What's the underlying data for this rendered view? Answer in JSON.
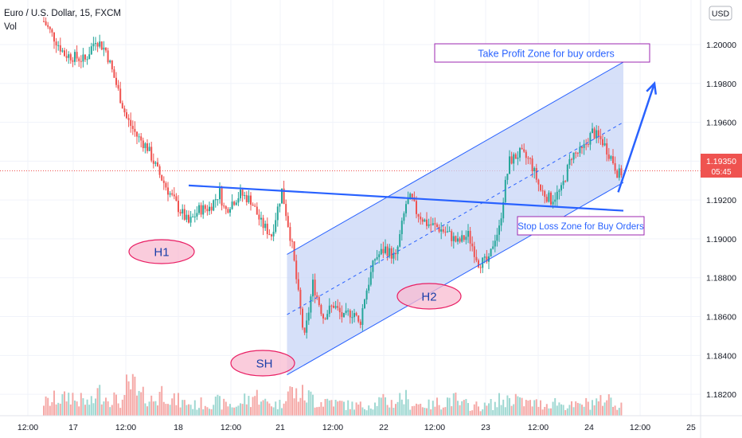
{
  "header": {
    "symbol": "Euro / U.S. Dollar, 15, FXCM",
    "volume_label": "Vol",
    "currency_button": "USD"
  },
  "price_tag": {
    "price": "1.19350",
    "countdown": "05:45"
  },
  "annotations": {
    "take_profit": "Take Profit Zone for buy orders",
    "stop_loss": "Stop Loss Zone for Buy Orders",
    "h1": "H1",
    "sh": "SH",
    "h2": "H2"
  },
  "colors": {
    "up": "#26a69a",
    "down": "#ef5350",
    "trendline": "#2962ff",
    "channel_fill": "#c8d6f7",
    "annotation_border": "#9c27b0",
    "ellipse_fill": "#f8bbd0",
    "ellipse_border": "#e91e63",
    "price_tag_bg": "#ef5350"
  },
  "chart_data": {
    "type": "candlestick",
    "title": "Euro / U.S. Dollar, 15, FXCM",
    "ylim": [
      1.1818,
      1.2009
    ],
    "y_ticks": [
      "1.20000",
      "1.19800",
      "1.19600",
      "1.19400",
      "1.19200",
      "1.19000",
      "1.18800",
      "1.18600",
      "1.18400",
      "1.18200"
    ],
    "x_ticks": [
      "12:00",
      "17",
      "12:00",
      "18",
      "12:00",
      "21",
      "12:00",
      "22",
      "12:00",
      "23",
      "12:00",
      "24",
      "12:00",
      "25"
    ],
    "grid": true,
    "last_price": 1.1935,
    "series": [
      {
        "name": "price",
        "path": [
          [
            0,
            1.2012
          ],
          [
            2,
            1.1995
          ],
          [
            4,
            1.1992
          ],
          [
            5,
            1.2003
          ],
          [
            6,
            1.1997
          ],
          [
            8,
            1.1962
          ],
          [
            9,
            1.1953
          ],
          [
            10,
            1.1947
          ],
          [
            11,
            1.1935
          ],
          [
            12,
            1.1925
          ],
          [
            13,
            1.1916
          ],
          [
            14,
            1.1908
          ],
          [
            15,
            1.1915
          ],
          [
            16,
            1.1916
          ],
          [
            17,
            1.1924
          ],
          [
            17.5,
            1.1914
          ],
          [
            18,
            1.1918
          ],
          [
            19,
            1.1923
          ],
          [
            20,
            1.192
          ],
          [
            21,
            1.1908
          ],
          [
            22,
            1.1902
          ],
          [
            23,
            1.1925
          ],
          [
            24,
            1.1896
          ],
          [
            24.5,
            1.1875
          ],
          [
            25,
            1.1855
          ],
          [
            25.2,
            1.1849
          ],
          [
            26,
            1.1877
          ],
          [
            27,
            1.186
          ],
          [
            28,
            1.1866
          ],
          [
            29,
            1.1859
          ],
          [
            29.5,
            1.1862
          ],
          [
            30,
            1.1862
          ],
          [
            30.5,
            1.1855
          ],
          [
            31,
            1.187
          ],
          [
            32,
            1.189
          ],
          [
            33,
            1.1895
          ],
          [
            34,
            1.189
          ],
          [
            35,
            1.1918
          ],
          [
            35.5,
            1.1921
          ],
          [
            36,
            1.1914
          ],
          [
            37,
            1.1908
          ],
          [
            38,
            1.1906
          ],
          [
            39,
            1.1903
          ],
          [
            40,
            1.1898
          ],
          [
            41,
            1.1902
          ],
          [
            42,
            1.1888
          ],
          [
            43,
            1.1888
          ],
          [
            43.5,
            1.19
          ],
          [
            44,
            1.1905
          ],
          [
            44.5,
            1.1925
          ],
          [
            45,
            1.194
          ],
          [
            46,
            1.1944
          ],
          [
            47,
            1.194
          ],
          [
            48,
            1.1925
          ],
          [
            49,
            1.192
          ],
          [
            50,
            1.1925
          ],
          [
            51,
            1.1943
          ],
          [
            52,
            1.1945
          ],
          [
            53,
            1.1955
          ],
          [
            54,
            1.195
          ],
          [
            55,
            1.194
          ],
          [
            55.5,
            1.1933
          ],
          [
            56,
            1.1935
          ]
        ]
      }
    ],
    "volume": [
      180,
      220,
      260,
      200,
      170,
      300,
      240,
      190,
      380,
      250,
      210,
      310,
      200,
      170,
      140,
      160,
      180,
      150,
      130,
      210,
      260,
      170,
      150,
      320,
      280,
      250,
      180,
      200,
      160,
      140,
      130,
      150,
      190,
      170,
      230,
      160,
      150,
      140,
      170,
      210,
      150,
      130,
      120,
      150,
      200,
      240,
      170,
      160,
      150,
      180,
      140,
      130,
      160,
      180,
      220,
      150,
      140
    ],
    "drawings": {
      "neckline": {
        "from": [
          14,
          1.19275
        ],
        "to": [
          56,
          1.19145
        ]
      },
      "channel": {
        "lower_start": [
          23.5,
          1.183
        ],
        "lower_end": [
          56,
          1.1929
        ],
        "upper_offset": 0.0062
      },
      "midline": true,
      "target_arrow": {
        "from": [
          55.5,
          1.1924
        ],
        "to": [
          59,
          1.198
        ]
      }
    }
  }
}
